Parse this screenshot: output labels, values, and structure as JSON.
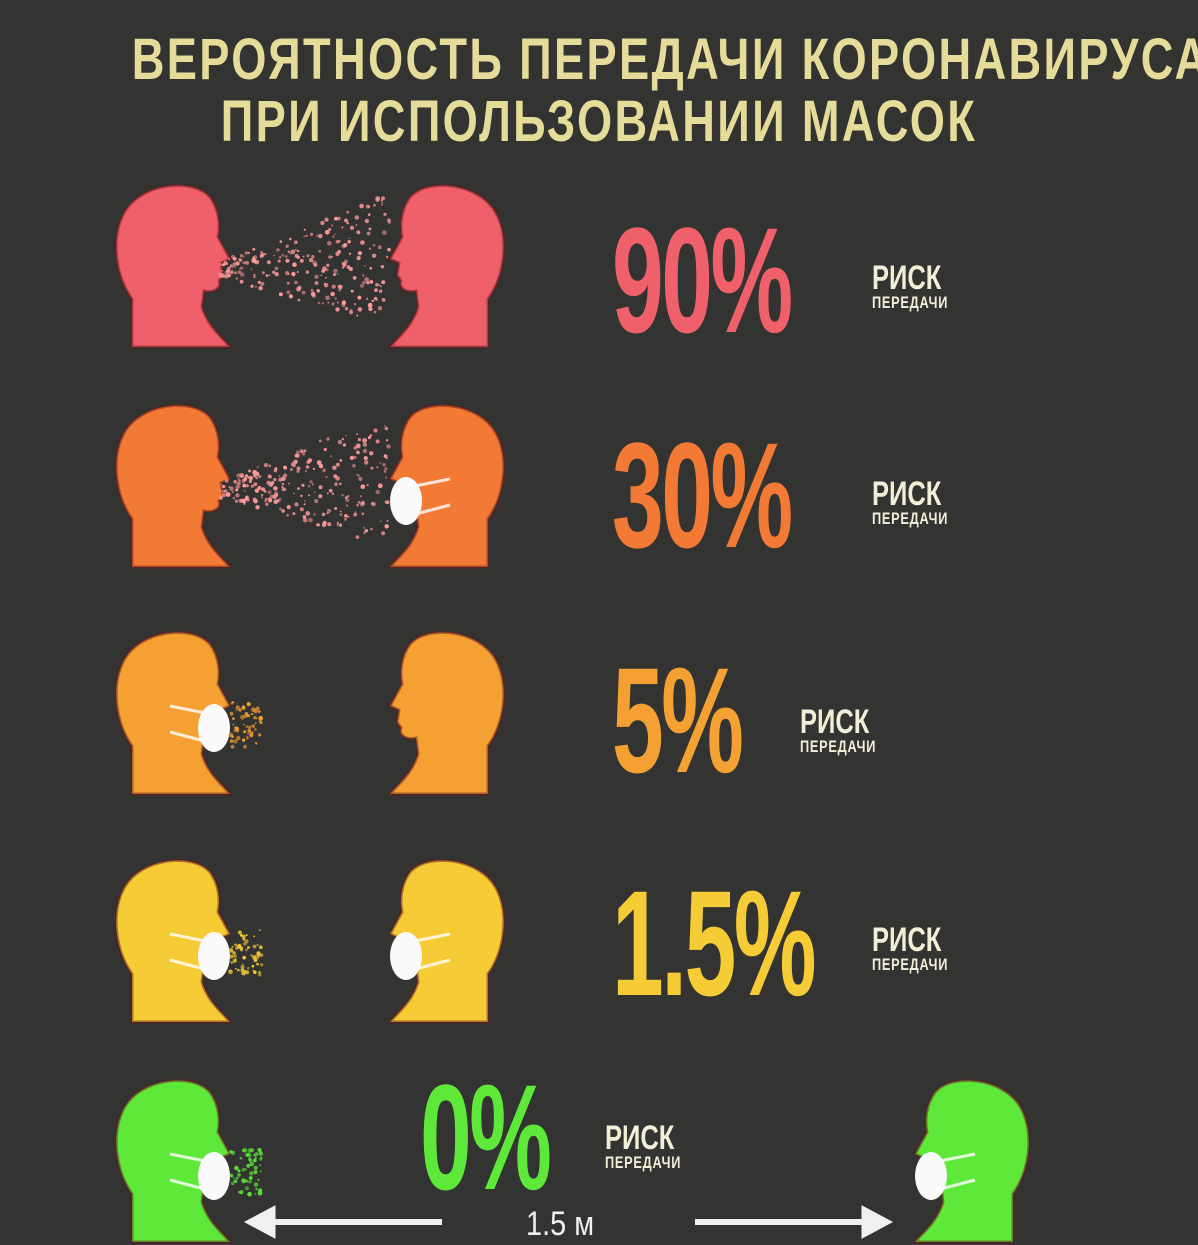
{
  "title": {
    "line1": "ВЕРОЯТНОСТЬ ПЕРЕДАЧИ КОРОНАВИРУСА",
    "line2": "ПРИ ИСПОЛЬЗОВАНИИ МАСОК"
  },
  "rows": [
    {
      "value": "90%",
      "risk": "РИСК",
      "transmission": "ПЕРЕДАЧИ",
      "color": "#f0606a",
      "left_mask": false,
      "right_mask": false,
      "spray": "wide"
    },
    {
      "value": "30%",
      "risk": "РИСК",
      "transmission": "ПЕРЕДАЧИ",
      "color": "#f27a35",
      "left_mask": false,
      "right_mask": true,
      "spray": "wide"
    },
    {
      "value": "5%",
      "risk": "РИСК",
      "transmission": "ПЕРЕДАЧИ",
      "color": "#f5a033",
      "left_mask": true,
      "right_mask": false,
      "spray": "small"
    },
    {
      "value": "1.5%",
      "risk": "РИСК",
      "transmission": "ПЕРЕДАЧИ",
      "color": "#f5cc35",
      "left_mask": true,
      "right_mask": true,
      "spray": "small"
    },
    {
      "value": "0%",
      "risk": "РИСК",
      "transmission": "ПЕРЕДАЧИ",
      "color": "#5ee83a",
      "left_mask": true,
      "right_mask": true,
      "spray": "small"
    }
  ],
  "distance": {
    "label": "1.5 м",
    "arrow_color": "#f0f0f0"
  }
}
